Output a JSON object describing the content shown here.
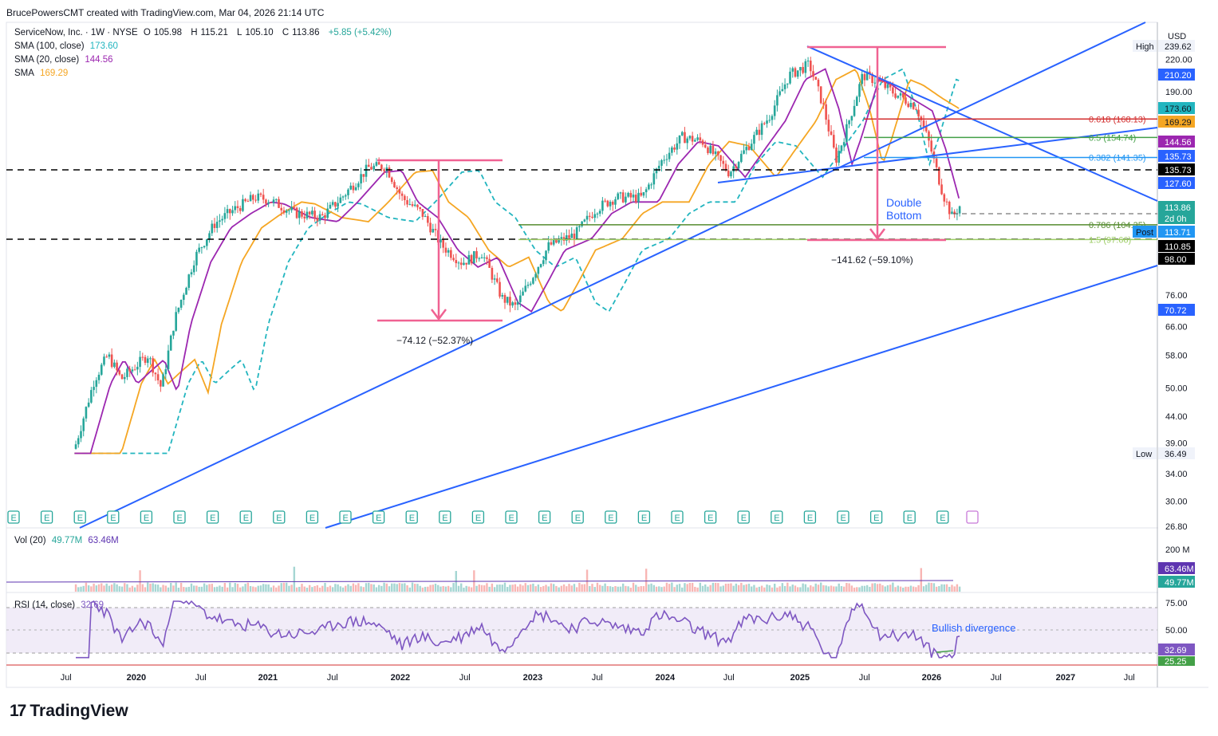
{
  "header": {
    "credit": "BrucePowersCMT created with TradingView.com, Mar 04, 2026 21:14 UTC"
  },
  "legend": {
    "symbol": "ServiceNow, Inc. · 1W · NYSE",
    "open_label": "O",
    "open": "105.98",
    "high_label": "H",
    "high": "115.21",
    "low_label": "L",
    "low": "105.10",
    "close_label": "C",
    "close": "113.86",
    "change": "+5.85 (+5.42%)",
    "sma100_label": "SMA (100, close)",
    "sma100_value": "173.60",
    "sma20_label": "SMA (20, close)",
    "sma20_value": "144.56",
    "sma_label": "SMA",
    "sma_value": "169.29"
  },
  "volume_legend": {
    "label": "Vol (20)",
    "v1": "49.77M",
    "v2": "63.46M"
  },
  "rsi_legend": {
    "label": "RSI (14, close)",
    "value": "32.69"
  },
  "currency": "USD",
  "colors": {
    "up": "#26a69a",
    "down": "#ef5350",
    "sma100": "#22b5bf",
    "sma20": "#9c27b0",
    "sma": "#f5a623",
    "trend": "#2962ff",
    "measure": "#f06292",
    "rsi": "#7e57c2"
  },
  "chart_data": {
    "type": "candlestick",
    "price_scale": "log",
    "ylim": [
      26.8,
      260
    ],
    "x_ticks": [
      "Jul",
      "2020",
      "Jul",
      "2021",
      "Jul",
      "2022",
      "Jul",
      "2023",
      "Jul",
      "2024",
      "Jul",
      "2025",
      "Jul",
      "2026",
      "Jul",
      "2027",
      "Jul"
    ],
    "y_ticks": [
      "220.00",
      "190.00",
      "76.00",
      "66.00",
      "58.00",
      "50.00",
      "44.00",
      "39.00",
      "34.00",
      "30.00",
      "26.80"
    ],
    "axis_labels": [
      {
        "text": "High",
        "value": "239.62",
        "color": "#f0f3fa",
        "fg": "#131722"
      },
      {
        "text": "",
        "value": "210.20",
        "color": "#2962ff",
        "fg": "#ffffff"
      },
      {
        "text": "",
        "value": "173.60",
        "color": "#22b5bf",
        "fg": "#131722"
      },
      {
        "text": "",
        "value": "169.29",
        "color": "#f5a623",
        "fg": "#131722"
      },
      {
        "text": "",
        "value": "144.56",
        "color": "#9c27b0",
        "fg": "#ffffff"
      },
      {
        "text": "",
        "value": "135.73",
        "color": "#2962ff",
        "fg": "#ffffff"
      },
      {
        "text": "",
        "value": "135.73",
        "color": "#000000",
        "fg": "#ffffff"
      },
      {
        "text": "",
        "value": "127.60",
        "color": "#2962ff",
        "fg": "#ffffff"
      },
      {
        "text": "",
        "value": "113.86",
        "color": "#26a69a",
        "fg": "#ffffff"
      },
      {
        "text": "",
        "value": "2d 0h",
        "color": "#26a69a",
        "fg": "#ffffff"
      },
      {
        "text": "Post",
        "value": "113.71",
        "color": "#2196f3",
        "fg": "#ffffff"
      },
      {
        "text": "",
        "value": "110.85",
        "color": "#000000",
        "fg": "#ffffff"
      },
      {
        "text": "",
        "value": "98.00",
        "color": "#000000",
        "fg": "#ffffff"
      },
      {
        "text": "",
        "value": "70.72",
        "color": "#2962ff",
        "fg": "#ffffff"
      },
      {
        "text": "Low",
        "value": "36.49",
        "color": "#f0f3fa",
        "fg": "#131722"
      }
    ],
    "fib_levels": [
      {
        "label": "0.618 (168.13)",
        "value": 168.13,
        "color": "#d32f2f"
      },
      {
        "label": "0.5 (154.74)",
        "value": 154.74,
        "color": "#43a047"
      },
      {
        "label": "0.382 (141.35)",
        "value": 141.35,
        "color": "#2196f3"
      },
      {
        "label": "0.786 (104.35)",
        "value": 104.35,
        "color": "#558b2f"
      },
      {
        "label": "1.5 (97.66)",
        "value": 97.66,
        "color": "#9ccc65"
      }
    ],
    "annotations": {
      "double_bottom": "Double\nBottom",
      "measure_1": "−74.12 (−52.37%)",
      "measure_2": "−141.62 (−59.10%)",
      "bullish_divergence": "Bullish divergence"
    },
    "series": [
      {
        "name": "SMA (100, close)",
        "last": 173.6
      },
      {
        "name": "SMA (20, close)",
        "last": 144.56
      },
      {
        "name": "SMA",
        "last": 169.29
      }
    ],
    "price_path": [
      [
        2019.55,
        38
      ],
      [
        2019.7,
        52
      ],
      [
        2019.8,
        58
      ],
      [
        2019.9,
        52
      ],
      [
        2020.0,
        55
      ],
      [
        2020.1,
        58
      ],
      [
        2020.2,
        50
      ],
      [
        2020.3,
        68
      ],
      [
        2020.45,
        90
      ],
      [
        2020.6,
        105
      ],
      [
        2020.75,
        112
      ],
      [
        2020.9,
        118
      ],
      [
        2021.0,
        117
      ],
      [
        2021.2,
        110
      ],
      [
        2021.4,
        108
      ],
      [
        2021.55,
        118
      ],
      [
        2021.75,
        135
      ],
      [
        2021.88,
        136
      ],
      [
        2022.0,
        118
      ],
      [
        2022.15,
        110
      ],
      [
        2022.3,
        95
      ],
      [
        2022.45,
        88
      ],
      [
        2022.6,
        92
      ],
      [
        2022.75,
        75
      ],
      [
        2022.85,
        72
      ],
      [
        2022.97,
        82
      ],
      [
        2023.1,
        95
      ],
      [
        2023.3,
        100
      ],
      [
        2023.45,
        112
      ],
      [
        2023.6,
        118
      ],
      [
        2023.8,
        118
      ],
      [
        2023.95,
        140
      ],
      [
        2024.1,
        155
      ],
      [
        2024.25,
        152
      ],
      [
        2024.45,
        132
      ],
      [
        2024.6,
        150
      ],
      [
        2024.75,
        170
      ],
      [
        2024.9,
        205
      ],
      [
        2025.05,
        215
      ],
      [
        2025.15,
        180
      ],
      [
        2025.25,
        140
      ],
      [
        2025.32,
        158
      ],
      [
        2025.45,
        205
      ],
      [
        2025.55,
        200
      ],
      [
        2025.7,
        188
      ],
      [
        2025.85,
        178
      ],
      [
        2025.95,
        150
      ],
      [
        2026.05,
        120
      ],
      [
        2026.12,
        108
      ],
      [
        2026.18,
        114
      ]
    ],
    "volume": {
      "label": "Vol (20)",
      "values_m": [
        49.77,
        63.46
      ],
      "scale_tick": "200 M"
    },
    "rsi": {
      "label": "RSI (14, close)",
      "last": 32.69,
      "ticks": [
        "75.00",
        "50.00"
      ],
      "labels": [
        "32.69",
        "25.25"
      ]
    }
  }
}
